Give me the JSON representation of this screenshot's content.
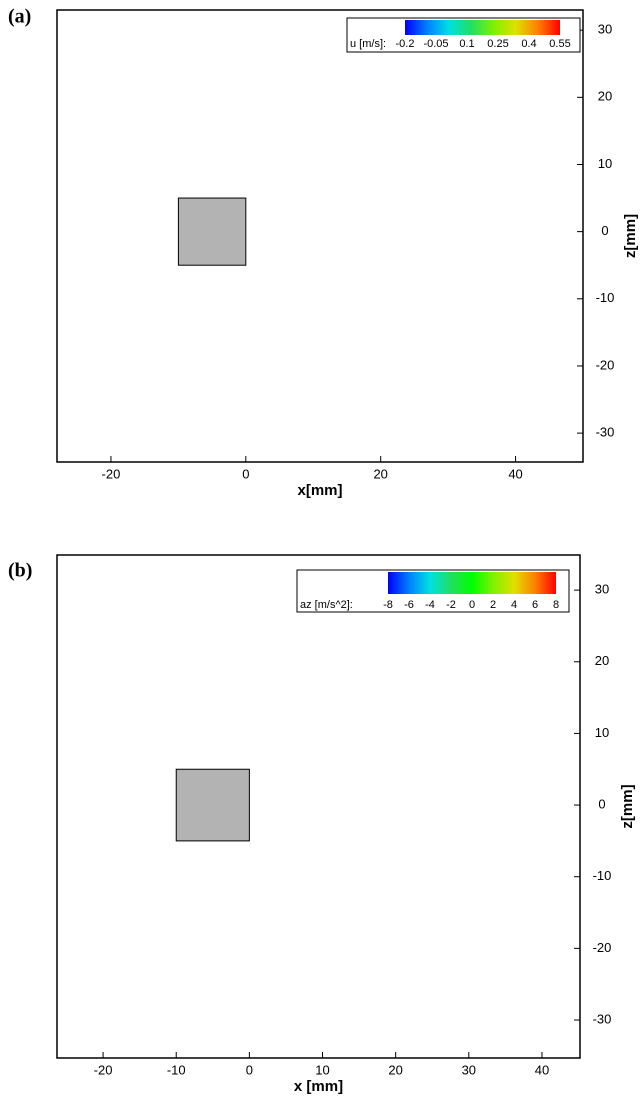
{
  "chart_data": [
    {
      "type": "streak",
      "panel_label": "(a)",
      "xlabel": "x[mm]",
      "ylabel": "z[mm]",
      "xlim": [
        -28,
        50
      ],
      "ylim": [
        -34.3,
        33
      ],
      "xticks": [
        -20,
        0,
        20,
        40
      ],
      "yticks": [
        -30,
        -20,
        -10,
        0,
        10,
        20,
        30
      ],
      "obstacle": {
        "x": [
          -10,
          0
        ],
        "y": [
          -5,
          5
        ]
      },
      "obstacle_color": "#b3b3b3",
      "colorbar": {
        "title": "u [m/s]:",
        "clim": [
          -0.2,
          0.55
        ],
        "ticks": [
          -0.2,
          -0.05,
          0.1,
          0.25,
          0.4,
          0.55
        ],
        "colormap": [
          "#0000ff",
          "#0080ff",
          "#00e0e0",
          "#20e060",
          "#80f000",
          "#e0e000",
          "#ff8000",
          "#ff0000"
        ]
      }
    },
    {
      "type": "streak",
      "panel_label": "(b)",
      "xlabel": "x [mm]",
      "ylabel": "z[mm]",
      "xlim": [
        -26.3,
        45.2
      ],
      "ylim": [
        -35.3,
        34.9
      ],
      "xticks": [
        -20,
        -10,
        0,
        10,
        20,
        30,
        40
      ],
      "yticks": [
        -30,
        -20,
        -10,
        0,
        10,
        20,
        30
      ],
      "obstacle": {
        "x": [
          -10,
          0
        ],
        "y": [
          -5,
          5
        ]
      },
      "obstacle_color": "#b3b3b3",
      "colorbar": {
        "title": "az [m/s^2]:",
        "clim": [
          -8,
          8
        ],
        "ticks": [
          -8,
          -6,
          -4,
          -2,
          0,
          2,
          4,
          6,
          8
        ],
        "colormap": [
          "#0000ff",
          "#0080ff",
          "#00e0e0",
          "#20e060",
          "#00ff00",
          "#80f000",
          "#e0e000",
          "#ff8000",
          "#ff0000"
        ]
      }
    }
  ]
}
